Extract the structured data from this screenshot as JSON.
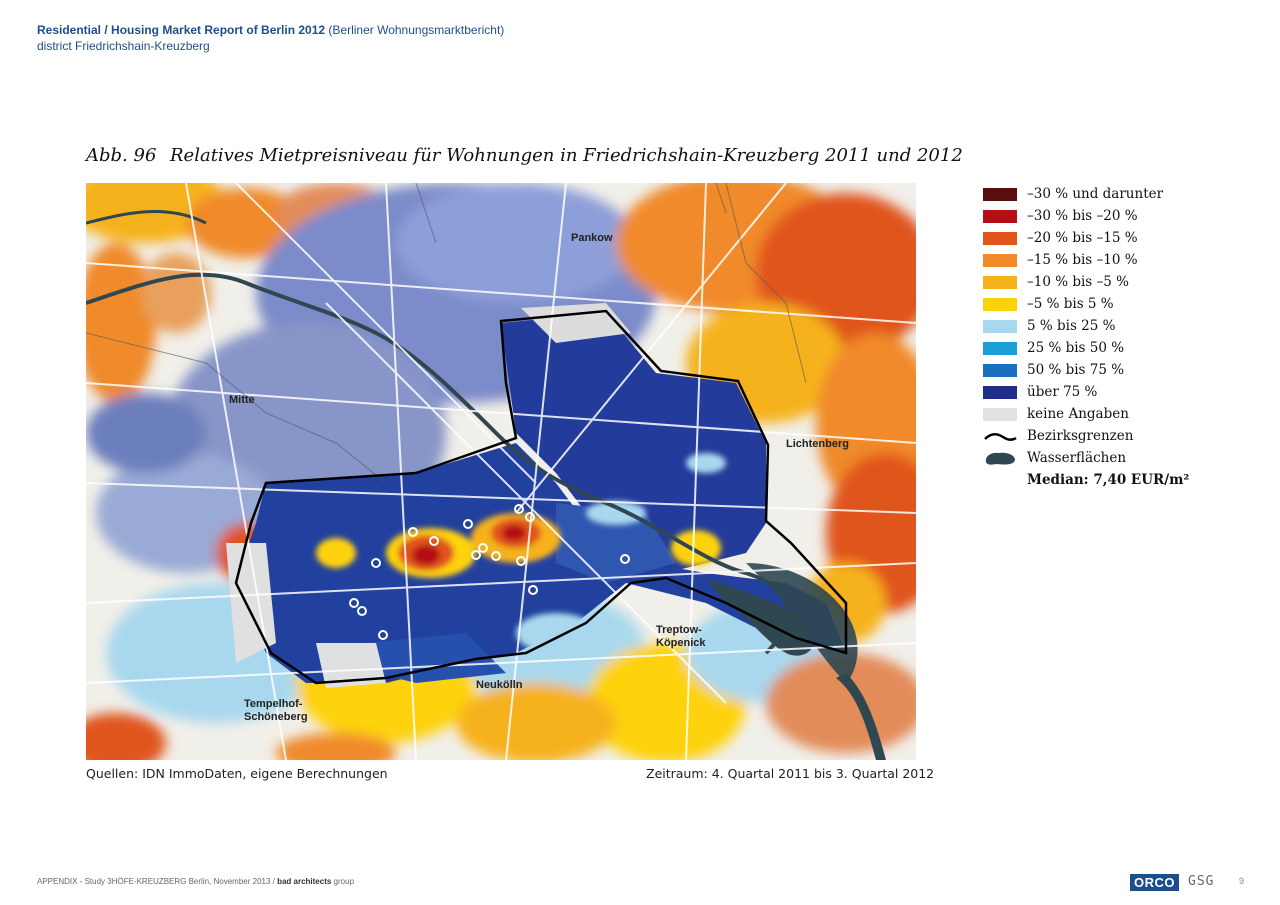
{
  "header": {
    "title_bold": "Residential / Housing Market Report of Berlin 2012",
    "title_paren": "(Berliner Wohnungsmarktbericht)",
    "subtitle": "district Friedrichshain-Kreuzberg"
  },
  "figure": {
    "number": "Abb. 96",
    "title": "Relatives Mietpreisniveau für Wohnungen in Friedrichshain-Kreuzberg 2011 und 2012",
    "map_labels": {
      "pankow": "Pankow",
      "mitte": "Mitte",
      "lichtenberg": "Lichtenberg",
      "treptow1": "Treptow-",
      "treptow2": "Köpenick",
      "neukoelln": "Neukölln",
      "tempelhof1": "Tempelhof-",
      "tempelhof2": "Schöneberg"
    },
    "source": "Quellen: IDN ImmoDaten, eigene Berechnungen",
    "period": "Zeitraum: 4. Quartal 2011 bis 3. Quartal 2012"
  },
  "legend": {
    "items": [
      {
        "label": "–30 % und darunter",
        "color": "#5a0d0d"
      },
      {
        "label": "–30 % bis –20 %",
        "color": "#b40f16"
      },
      {
        "label": "–20 % bis –15 %",
        "color": "#e0541a"
      },
      {
        "label": "–15 % bis –10 %",
        "color": "#f08a2a"
      },
      {
        "label": "–10 % bis –5 %",
        "color": "#f6b21b"
      },
      {
        "label": "–5 % bis 5 %",
        "color": "#fed20a"
      },
      {
        "label": "5 % bis 25 %",
        "color": "#a9d8ee"
      },
      {
        "label": "25 % bis 50 %",
        "color": "#1aa0d6"
      },
      {
        "label": "50 % bis 75 %",
        "color": "#1b6ebd"
      },
      {
        "label": "über 75 %",
        "color": "#1f2f88"
      },
      {
        "label": "keine Angaben",
        "color": "#e2e2e2"
      }
    ],
    "boundary_label": "Bezirksgrenzen",
    "water_label": "Wasserflächen",
    "median": "Median: 7,40 EUR/m²"
  },
  "footer": {
    "text_pre": "APPENDIX - Study 3HÖFE-KREUZBERG Berlin, November 2013 / ",
    "text_bold": "bad architects",
    "text_post": " group",
    "logo_orco": "ORCO",
    "logo_gsg": "GSG",
    "page_number": "9"
  }
}
